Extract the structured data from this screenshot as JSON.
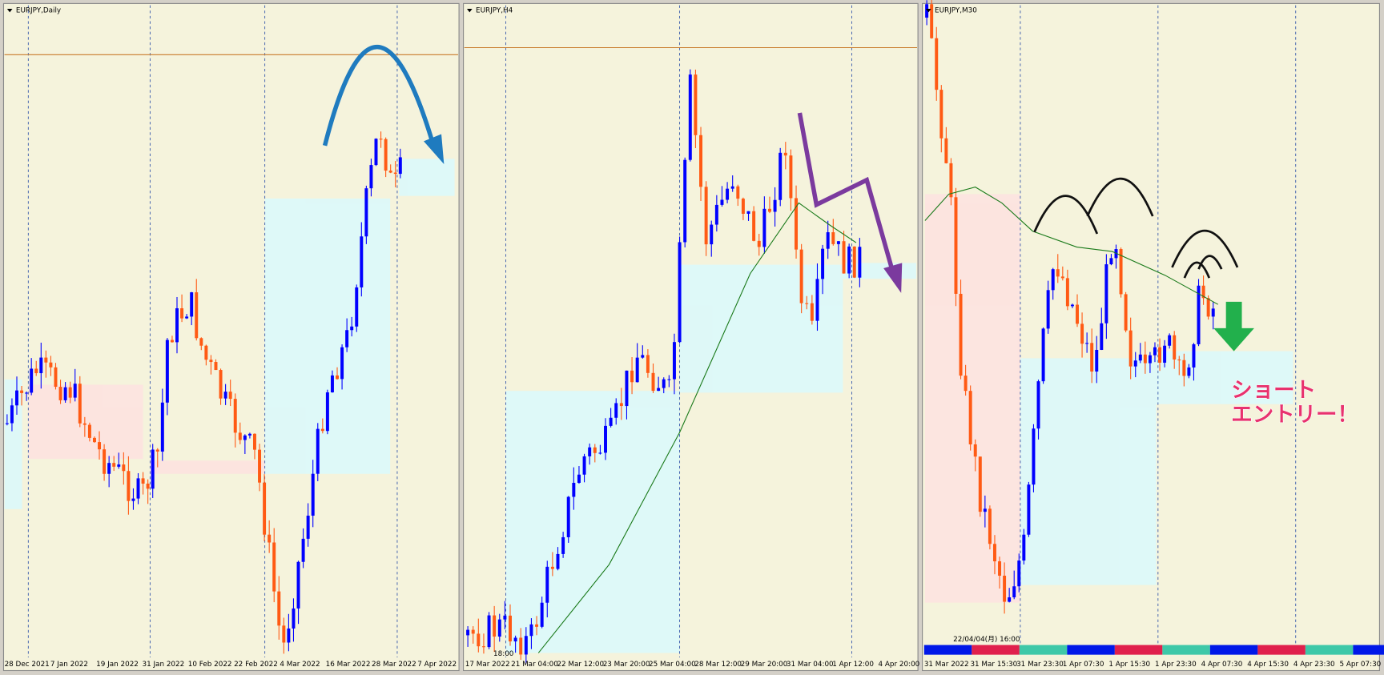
{
  "panels": [
    {
      "title": "EURJPY,Daily",
      "x_labels": [
        "28 Dec 2021",
        "7 Jan 2022",
        "19 Jan 2022",
        "31 Jan 2022",
        "10 Feb 2022",
        "22 Feb 2022",
        "4 Mar 2022",
        "16 Mar 2022",
        "28 Mar 2022",
        "7 Apr 2022"
      ]
    },
    {
      "title": "EURJPY,H4",
      "x_labels": [
        "17 Mar 2022",
        "21 Mar 04:00",
        "22 Mar 12:00",
        "23 Mar 20:00",
        "25 Mar 04:00",
        "28 Mar 12:00",
        "29 Mar 20:00",
        "31 Mar 04:00",
        "1 Apr 12:00",
        "4 Apr 20:00"
      ],
      "cursor_time": "18:00"
    },
    {
      "title": "EURJPY,M30",
      "x_labels": [
        "31 Mar 2022",
        "31 Mar 15:30",
        "31 Mar 23:30",
        "1 Apr 07:30",
        "1 Apr 15:30",
        "1 Apr 23:30",
        "4 Apr 07:30",
        "4 Apr 15:30",
        "4 Apr 23:30",
        "5 Apr 07:30"
      ],
      "cursor_time": "22/04/04(月) 16:00"
    }
  ],
  "annotation": {
    "lines": [
      "ショート",
      "エントリー！"
    ]
  }
}
